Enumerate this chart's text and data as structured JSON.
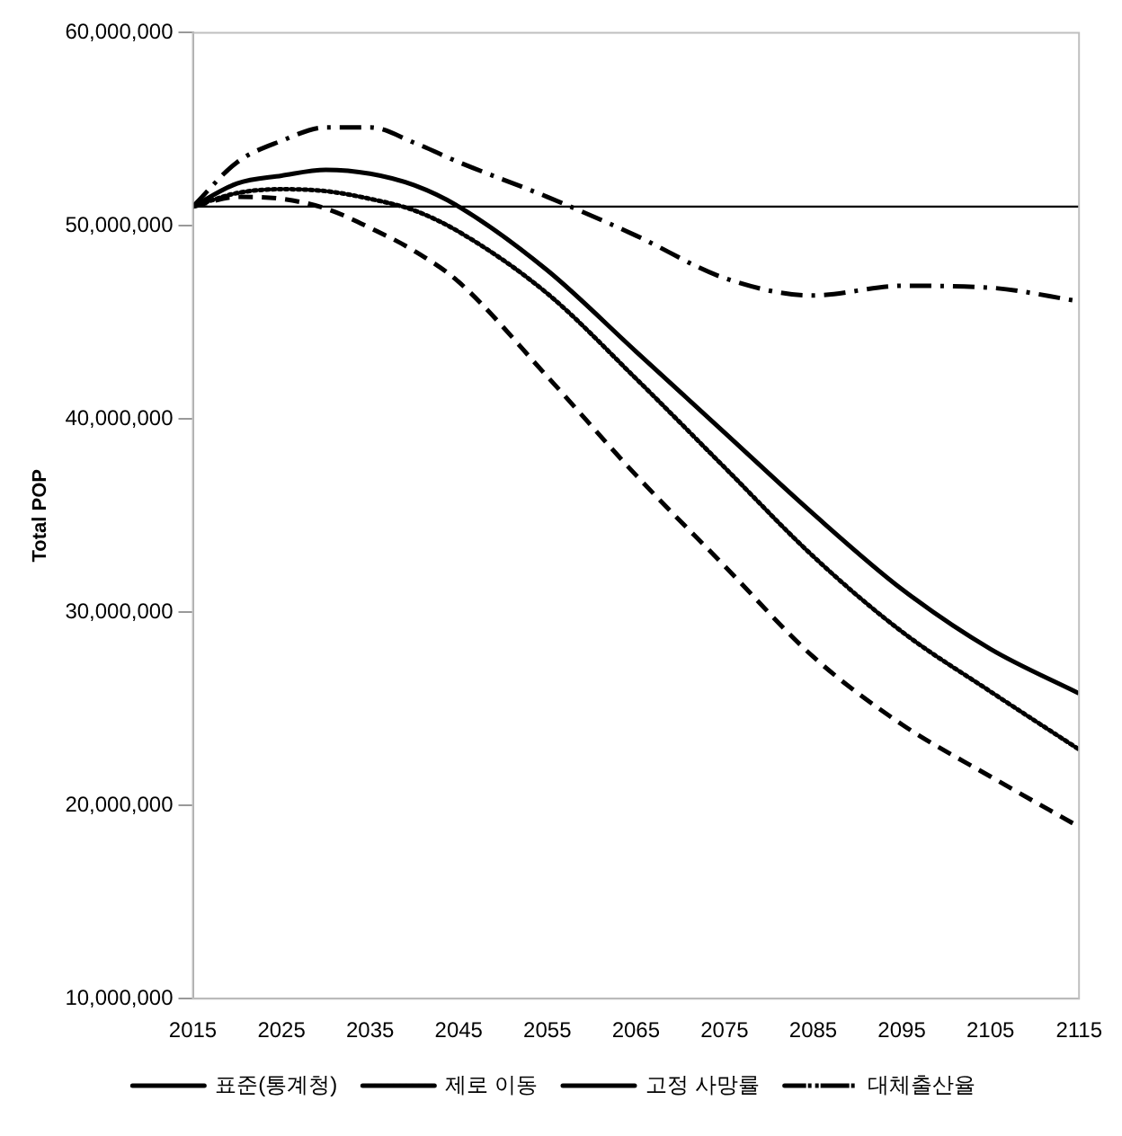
{
  "chart_data": {
    "type": "line",
    "ylabel": "Total POP",
    "x": [
      2015,
      2020,
      2025,
      2030,
      2035,
      2040,
      2045,
      2055,
      2065,
      2075,
      2085,
      2095,
      2105,
      2115
    ],
    "series": [
      {
        "name": "표준(통계청)",
        "color": "#000000",
        "line_style": "solid",
        "values": [
          51000000,
          52200000,
          52600000,
          52900000,
          52700000,
          52100000,
          51000000,
          47700000,
          43500000,
          39300000,
          35100000,
          31200000,
          28100000,
          25800000
        ]
      },
      {
        "name": "제로 이동",
        "color": "#000000",
        "line_style": "dotted",
        "values": [
          51000000,
          51700000,
          51900000,
          51800000,
          51400000,
          50800000,
          49700000,
          46500000,
          42100000,
          37500000,
          32900000,
          29000000,
          25900000,
          22900000
        ]
      },
      {
        "name": "고정 사망률",
        "color": "#000000",
        "line_style": "dashed",
        "values": [
          51000000,
          51500000,
          51400000,
          50900000,
          49900000,
          48700000,
          47100000,
          42200000,
          37100000,
          32400000,
          27700000,
          24200000,
          21500000,
          18900000
        ]
      },
      {
        "name": "대체출산율",
        "color": "#000000",
        "line_style": "dashdot",
        "values": [
          51000000,
          53300000,
          54400000,
          55100000,
          55100000,
          54300000,
          53300000,
          51500000,
          49500000,
          47300000,
          46400000,
          46900000,
          46800000,
          46100000
        ]
      }
    ],
    "xlim": [
      2015,
      2115
    ],
    "xticks": [
      2015,
      2025,
      2035,
      2045,
      2055,
      2065,
      2075,
      2085,
      2095,
      2105,
      2115
    ],
    "ylim": [
      10000000,
      60000000
    ],
    "yticks": [
      {
        "value": 10000000,
        "label": "10,000,000"
      },
      {
        "value": 20000000,
        "label": "20,000,000"
      },
      {
        "value": 30000000,
        "label": "30,000,000"
      },
      {
        "value": 40000000,
        "label": "40,000,000"
      },
      {
        "value": 50000000,
        "label": "50,000,000"
      },
      {
        "value": 60000000,
        "label": "60,000,000"
      }
    ],
    "ref_lines": [
      {
        "axis": "y",
        "value": 51000000,
        "color": "#000000"
      }
    ],
    "grid": false,
    "legend": "bottom",
    "marker": "none"
  }
}
